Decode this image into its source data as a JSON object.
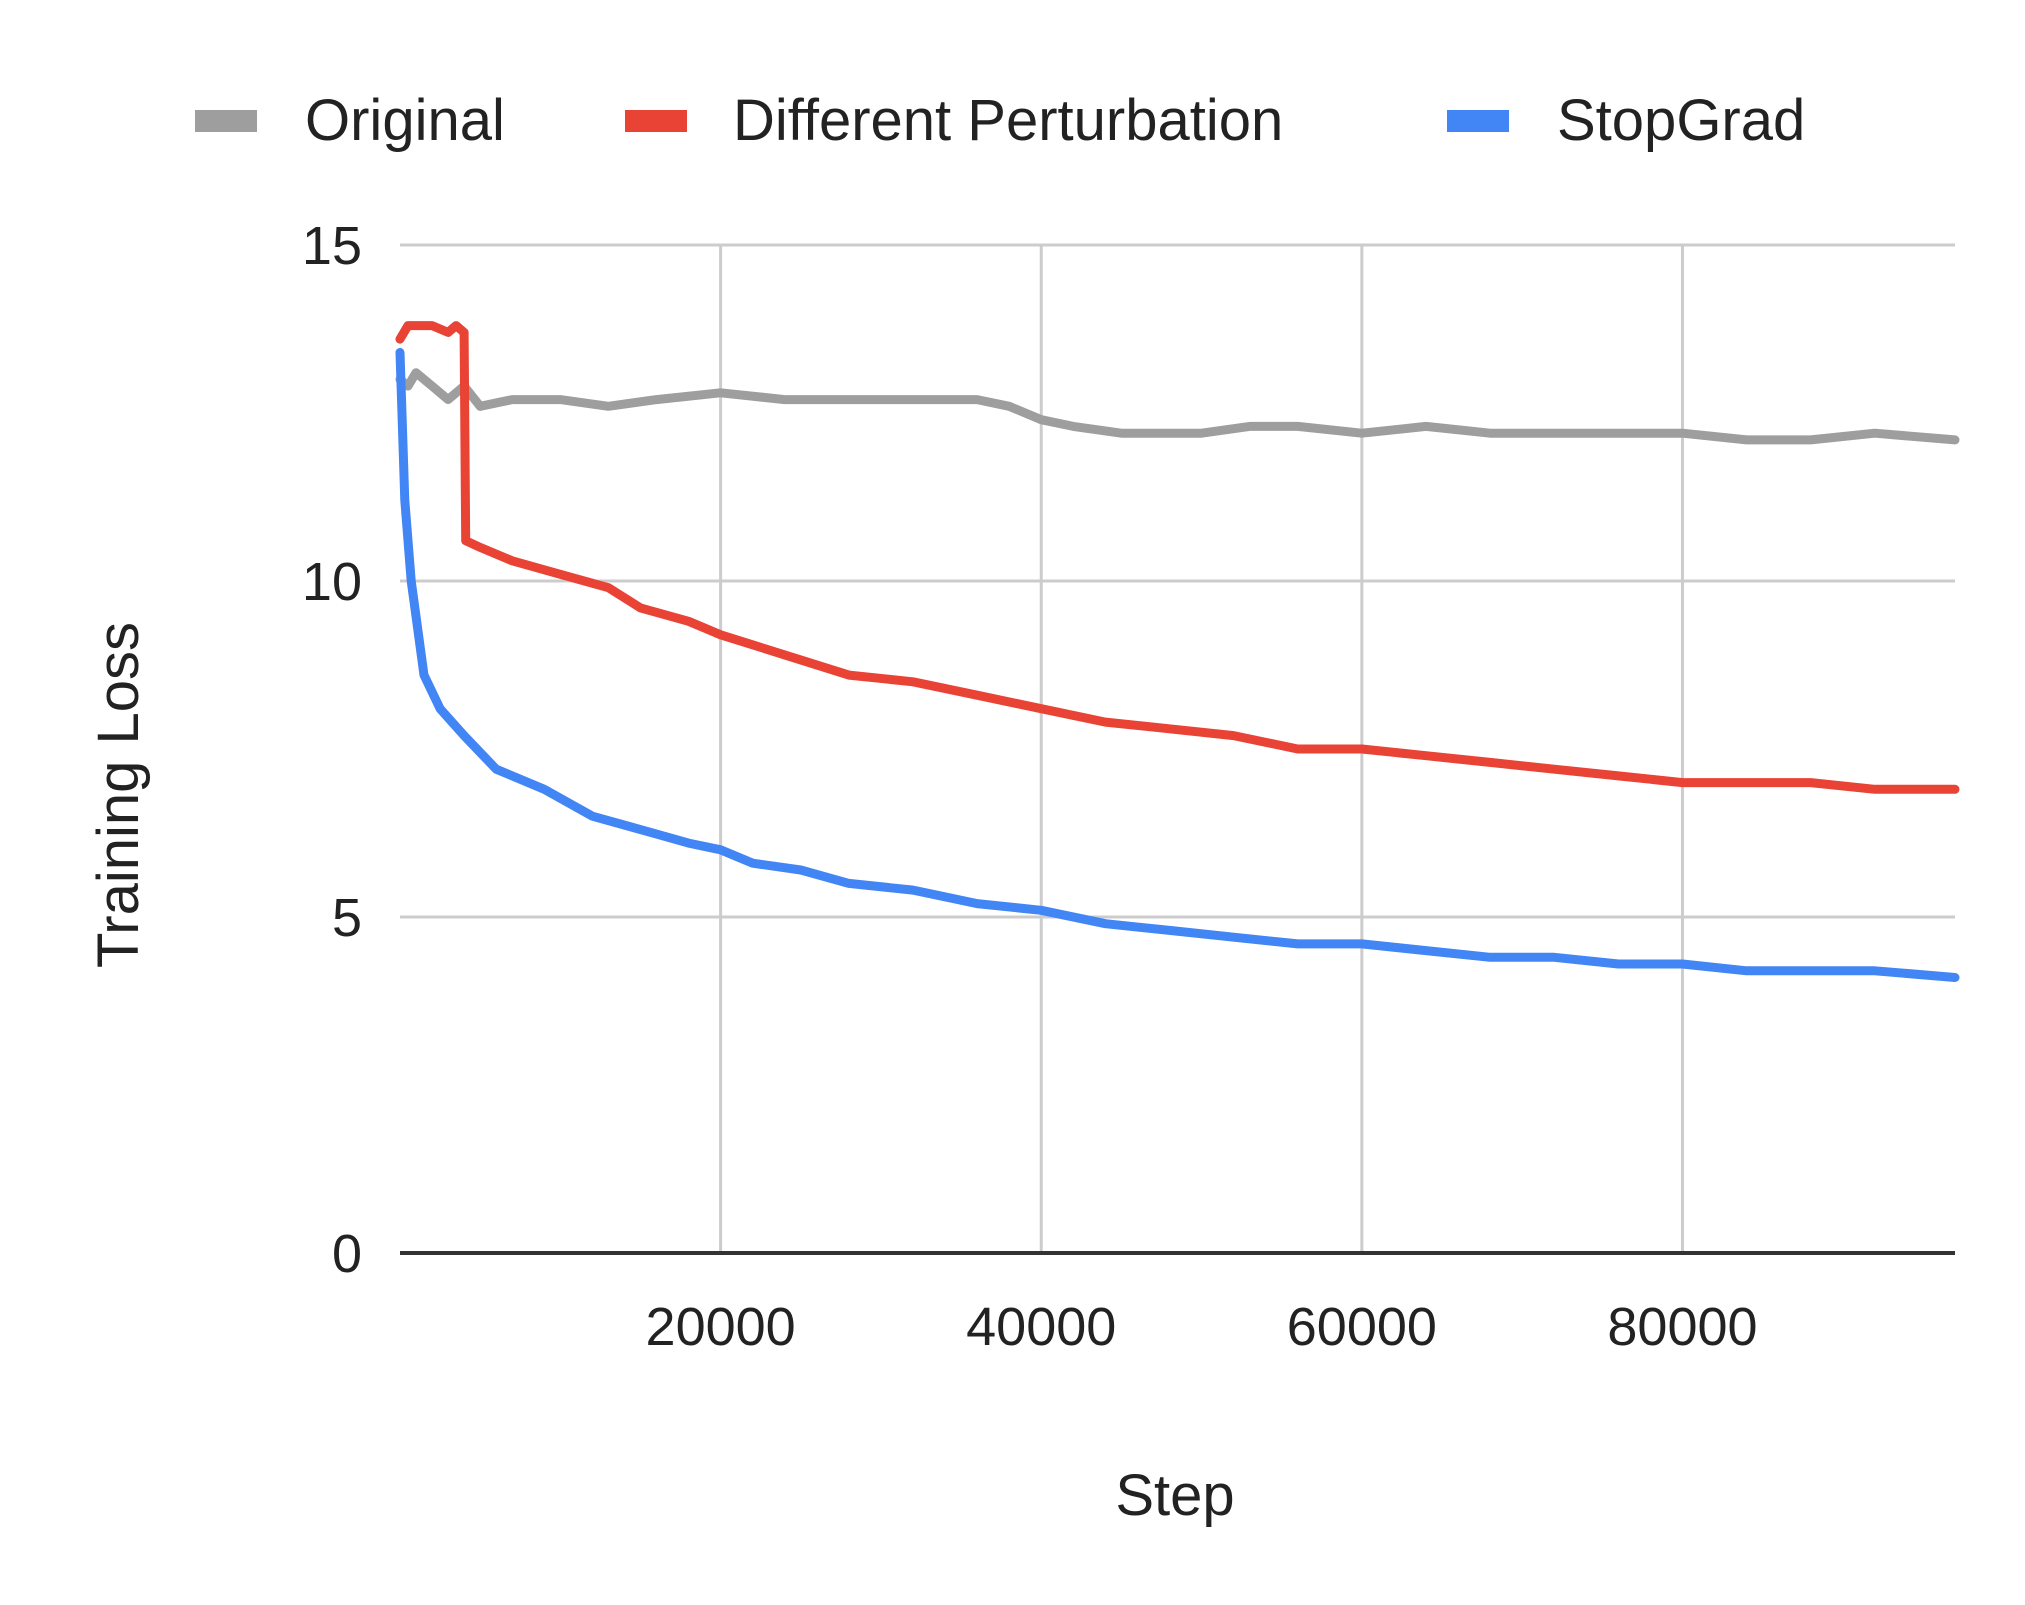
{
  "chart_data": {
    "type": "line",
    "title": "",
    "xlabel": "Step",
    "ylabel": "Training Loss",
    "xlim": [
      0,
      97000
    ],
    "ylim": [
      0,
      15
    ],
    "xticks": [
      20000,
      40000,
      60000,
      80000
    ],
    "xtick_labels": [
      "20000",
      "40000",
      "60000",
      "80000"
    ],
    "yticks": [
      0,
      5,
      10,
      15
    ],
    "ytick_labels": [
      "0",
      "5",
      "10",
      "15"
    ],
    "grid": true,
    "legend_position": "top",
    "series": [
      {
        "name": "Original",
        "color": "#9e9e9e",
        "x": [
          0,
          500,
          1000,
          2000,
          3000,
          4000,
          5000,
          7000,
          10000,
          13000,
          16000,
          20000,
          24000,
          28000,
          32000,
          36000,
          38000,
          40000,
          42000,
          45000,
          48000,
          50000,
          53000,
          56000,
          60000,
          64000,
          68000,
          72000,
          76000,
          80000,
          84000,
          88000,
          92000,
          97000
        ],
        "y": [
          13.0,
          12.9,
          13.1,
          12.9,
          12.7,
          12.9,
          12.6,
          12.7,
          12.7,
          12.6,
          12.7,
          12.8,
          12.7,
          12.7,
          12.7,
          12.7,
          12.6,
          12.4,
          12.3,
          12.2,
          12.2,
          12.2,
          12.3,
          12.3,
          12.2,
          12.3,
          12.2,
          12.2,
          12.2,
          12.2,
          12.1,
          12.1,
          12.2,
          12.1
        ]
      },
      {
        "name": "Different Perturbation",
        "color": "#e94335",
        "x": [
          0,
          500,
          1000,
          2000,
          3000,
          3500,
          4000,
          4100,
          5000,
          7000,
          10000,
          13000,
          15000,
          18000,
          20000,
          24000,
          28000,
          32000,
          36000,
          40000,
          44000,
          48000,
          52000,
          56000,
          60000,
          64000,
          68000,
          72000,
          76000,
          80000,
          84000,
          88000,
          92000,
          97000
        ],
        "y": [
          13.6,
          13.8,
          13.8,
          13.8,
          13.7,
          13.8,
          13.7,
          10.6,
          10.5,
          10.3,
          10.1,
          9.9,
          9.6,
          9.4,
          9.2,
          8.9,
          8.6,
          8.5,
          8.3,
          8.1,
          7.9,
          7.8,
          7.7,
          7.5,
          7.5,
          7.4,
          7.3,
          7.2,
          7.1,
          7.0,
          7.0,
          7.0,
          6.9,
          6.9
        ]
      },
      {
        "name": "StopGrad",
        "color": "#4285f4",
        "x": [
          0,
          300,
          700,
          1500,
          2500,
          4000,
          6000,
          9000,
          12000,
          15000,
          18000,
          20000,
          22000,
          25000,
          28000,
          32000,
          36000,
          40000,
          44000,
          48000,
          52000,
          56000,
          60000,
          64000,
          68000,
          72000,
          76000,
          80000,
          84000,
          88000,
          92000,
          97000
        ],
        "y": [
          13.4,
          11.2,
          10.0,
          8.6,
          8.1,
          7.7,
          7.2,
          6.9,
          6.5,
          6.3,
          6.1,
          6.0,
          5.8,
          5.7,
          5.5,
          5.4,
          5.2,
          5.1,
          4.9,
          4.8,
          4.7,
          4.6,
          4.6,
          4.5,
          4.4,
          4.4,
          4.3,
          4.3,
          4.2,
          4.2,
          4.2,
          4.1
        ]
      }
    ]
  }
}
